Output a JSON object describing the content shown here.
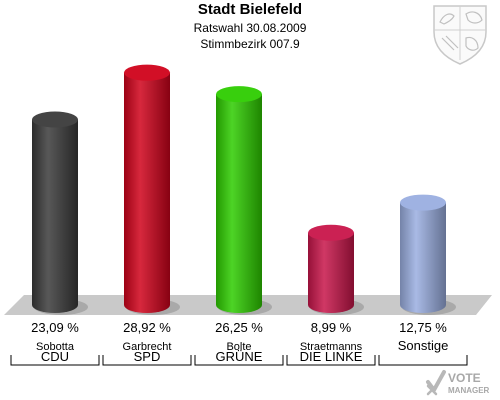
{
  "header": {
    "title": "Stadt Bielefeld",
    "subtitle": "Ratswahl 30.08.2009",
    "district": "Stimmbezirk 007.9"
  },
  "chart_data": {
    "type": "bar",
    "categories": [
      "CDU",
      "SPD",
      "GRÜNE",
      "DIE LINKE",
      "Sonstige"
    ],
    "candidates": [
      "Sobotta",
      "Garbrecht",
      "Bolte",
      "Straetmanns",
      ""
    ],
    "values": [
      23.09,
      28.92,
      26.25,
      8.99,
      12.75
    ],
    "value_labels": [
      "23,09 %",
      "28,92 %",
      "26,25 %",
      "8,99 %",
      "12,75 %"
    ],
    "colors": [
      "#3a3a3a",
      "#d0021b",
      "#2ecc00",
      "#c8154a",
      "#9aaee0"
    ],
    "ylim": [
      0,
      30
    ],
    "grid": false
  },
  "logo": {
    "line1": "VOTE",
    "line2": "MANAGER"
  }
}
